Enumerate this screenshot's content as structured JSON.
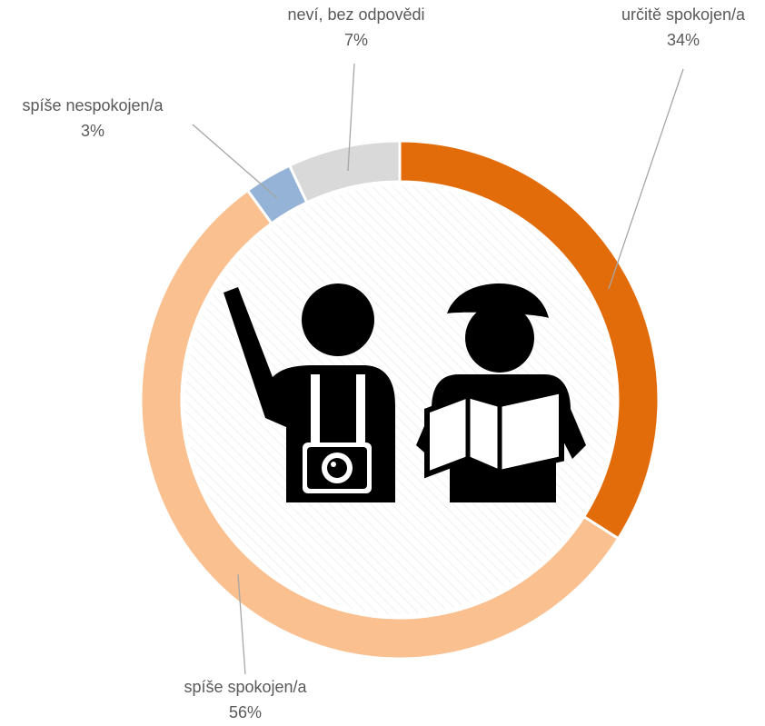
{
  "chart_data": {
    "type": "donut",
    "categories": [
      "určitě spokojen/a",
      "spíše spokojen/a",
      "spíše nespokojen/a",
      "neví, bez odpovědi"
    ],
    "values": [
      34,
      56,
      3,
      7
    ],
    "value_labels": [
      "34%",
      "56%",
      "3%",
      "7%"
    ],
    "colors": [
      "#e36c0a",
      "#fac090",
      "#95b3d7",
      "#d9d9d9"
    ]
  }
}
